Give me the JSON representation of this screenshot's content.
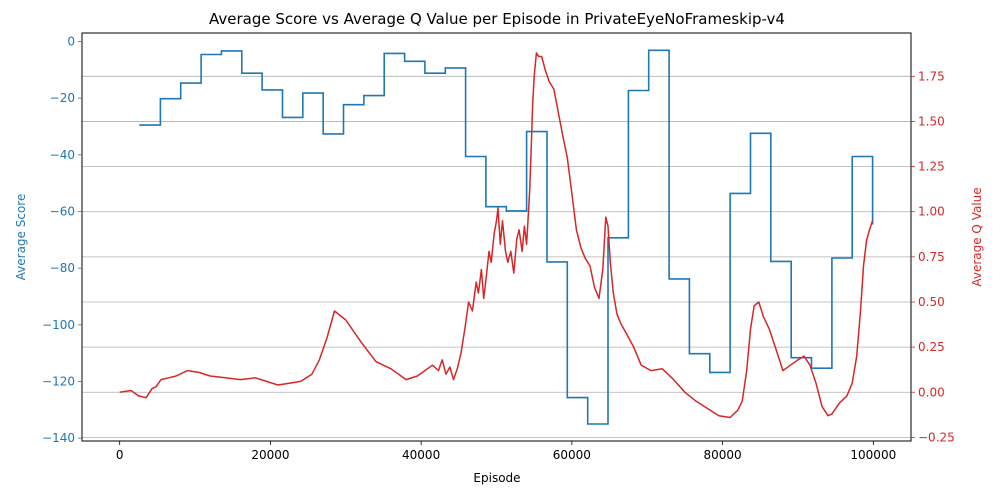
{
  "chart_data": {
    "type": "line",
    "title": "Average Score vs Average Q Value per Episode in PrivateEyeNoFrameskip-v4",
    "xlabel": "Episode",
    "ylabel_left": "Average Score",
    "ylabel_right": "Average Q Value",
    "xlim": [
      -5000,
      105000
    ],
    "ylim_left": [
      -141,
      3
    ],
    "ylim_right": [
      -0.27,
      1.99
    ],
    "x_ticks": [
      0,
      20000,
      40000,
      60000,
      80000,
      100000
    ],
    "y_left_ticks": [
      0,
      -20,
      -40,
      -60,
      -80,
      -100,
      -120,
      -140
    ],
    "y_right_ticks": [
      -0.25,
      0.0,
      0.25,
      0.5,
      0.75,
      1.0,
      1.25,
      1.5,
      1.75
    ],
    "grid": "horizontal lines on right axis ticks",
    "colors": {
      "score": "#1f77b4",
      "q_value": "#d62728"
    },
    "series": [
      {
        "name": "Average Score",
        "axis": "left",
        "step": true,
        "x": [
          2600,
          5400,
          8100,
          10800,
          13500,
          16200,
          18900,
          21600,
          24300,
          27000,
          29700,
          32400,
          35100,
          37800,
          40500,
          43200,
          45900,
          48600,
          51300,
          54000,
          56700,
          59400,
          62100,
          64800,
          67500,
          70200,
          72900,
          75600,
          78300,
          81000,
          83700,
          86400,
          89100,
          91800,
          94500,
          97200,
          99900
        ],
        "values": [
          -29.5,
          -20.2,
          -14.7,
          -4.6,
          -3.3,
          -11.2,
          -17.1,
          -26.8,
          -18.2,
          -32.6,
          -22.3,
          -19.1,
          -4.2,
          -7.0,
          -11.2,
          -9.3,
          -40.6,
          -58.3,
          -59.8,
          -31.8,
          -77.8,
          -125.7,
          -135.0,
          -69.3,
          -17.3,
          -3.1,
          -83.8,
          -110.2,
          -116.8,
          -53.6,
          -32.4,
          -77.6,
          -111.6,
          -115.3,
          -76.4,
          -40.6,
          -64.6
        ]
      },
      {
        "name": "Average Q Value",
        "axis": "right",
        "x": [
          0,
          1500,
          2500,
          3500,
          4300,
          4800,
          5500,
          6500,
          7500,
          9000,
          10500,
          12000,
          14000,
          16000,
          18000,
          19500,
          21000,
          22500,
          24000,
          25500,
          26500,
          27500,
          28500,
          30000,
          32000,
          34000,
          36000,
          38000,
          39500,
          41500,
          42300,
          42800,
          43300,
          43800,
          44300,
          44800,
          45300,
          45800,
          46300,
          46800,
          47300,
          47600,
          48000,
          48300,
          48600,
          49000,
          49300,
          49700,
          50000,
          50200,
          50500,
          50800,
          51200,
          51500,
          51900,
          52300,
          52700,
          53000,
          53400,
          53700,
          54000,
          54200,
          54400,
          54600,
          54800,
          55000,
          55300,
          55600,
          56000,
          56500,
          57000,
          57600,
          58200,
          58800,
          59400,
          60000,
          60600,
          61200,
          61800,
          62400,
          63000,
          63600,
          64100,
          64500,
          64800,
          65100,
          65500,
          66000,
          66500,
          67300,
          68200,
          69200,
          70500,
          72000,
          73500,
          75000,
          76500,
          78000,
          79500,
          81000,
          82000,
          82600,
          83200,
          83700,
          84200,
          84800,
          85400,
          86200,
          87000,
          88000,
          89000,
          90000,
          90800,
          91600,
          92400,
          93200,
          94000,
          94500,
          95500,
          96500,
          97200,
          97800,
          98300,
          98700,
          99100,
          99500,
          99900
        ],
        "values": [
          0.0,
          0.01,
          -0.02,
          -0.03,
          0.02,
          0.03,
          0.07,
          0.08,
          0.09,
          0.12,
          0.11,
          0.09,
          0.08,
          0.07,
          0.08,
          0.06,
          0.04,
          0.05,
          0.06,
          0.1,
          0.18,
          0.3,
          0.45,
          0.4,
          0.28,
          0.17,
          0.13,
          0.07,
          0.09,
          0.15,
          0.12,
          0.18,
          0.1,
          0.14,
          0.07,
          0.13,
          0.22,
          0.35,
          0.5,
          0.45,
          0.61,
          0.55,
          0.68,
          0.52,
          0.62,
          0.78,
          0.72,
          0.88,
          0.95,
          1.02,
          0.82,
          0.95,
          0.78,
          0.72,
          0.78,
          0.66,
          0.85,
          0.9,
          0.78,
          0.92,
          0.82,
          0.97,
          1.12,
          1.35,
          1.6,
          1.75,
          1.88,
          1.86,
          1.86,
          1.78,
          1.72,
          1.68,
          1.55,
          1.42,
          1.3,
          1.1,
          0.9,
          0.8,
          0.74,
          0.7,
          0.58,
          0.52,
          0.68,
          0.97,
          0.92,
          0.72,
          0.55,
          0.43,
          0.38,
          0.32,
          0.25,
          0.15,
          0.12,
          0.13,
          0.07,
          0.0,
          -0.05,
          -0.09,
          -0.13,
          -0.14,
          -0.1,
          -0.05,
          0.12,
          0.35,
          0.48,
          0.5,
          0.42,
          0.35,
          0.25,
          0.12,
          0.15,
          0.18,
          0.2,
          0.15,
          0.05,
          -0.08,
          -0.13,
          -0.12,
          -0.06,
          -0.02,
          0.05,
          0.2,
          0.45,
          0.7,
          0.84,
          0.9,
          0.95
        ]
      }
    ]
  }
}
